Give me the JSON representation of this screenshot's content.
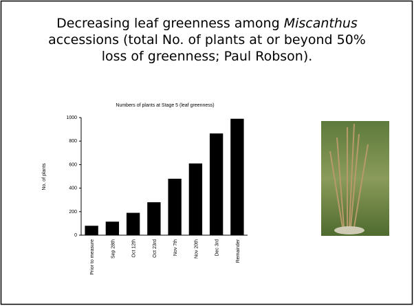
{
  "slide": {
    "title": [
      "Decreasing leaf greenness among ",
      "Miscanthus",
      "accessions (total No. of plants at or beyond 50%",
      "loss of greenness; Paul Robson)."
    ]
  },
  "chart_data": {
    "type": "bar",
    "title": "Numbers of plants at Stage 5 (leaf greenness)",
    "y_label": "No. of plants",
    "categories": [
      "Prior to measure",
      "Sep 28th",
      "Oct 12th",
      "Oct 23rd",
      "Nov 7th",
      "Nov 20th",
      "Dec 3rd",
      "Remainder"
    ],
    "values": [
      80,
      115,
      190,
      280,
      480,
      610,
      865,
      990
    ],
    "color": "#000000",
    "ylim": [
      0,
      1000
    ],
    "yticks": [
      0,
      200,
      400,
      600,
      800,
      1000
    ],
    "grid": false
  }
}
